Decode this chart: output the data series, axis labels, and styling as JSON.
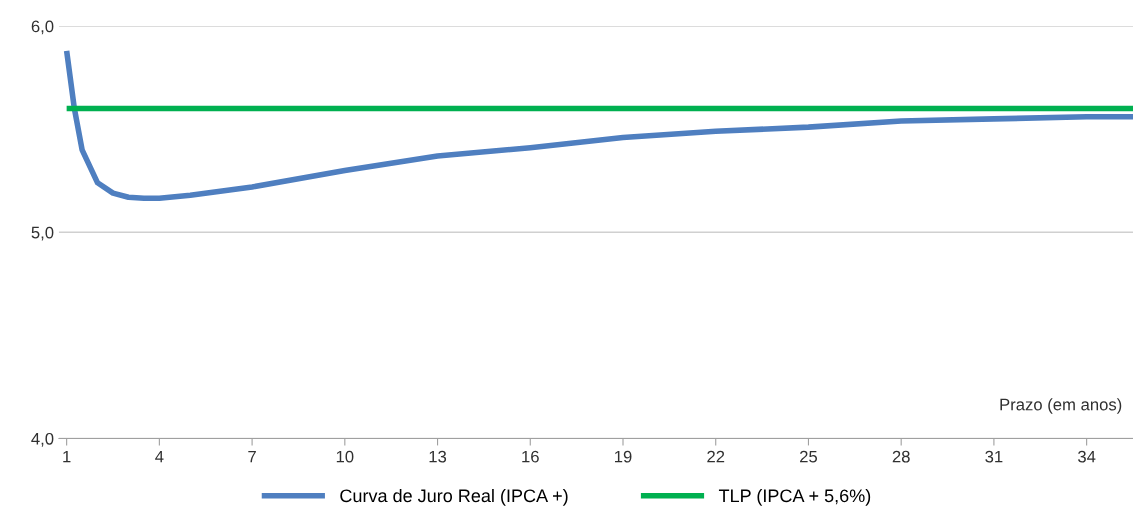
{
  "chart_data": {
    "type": "line",
    "xlabel": "Prazo (em anos)",
    "xlim": [
      0.75,
      35.5
    ],
    "xticks": [
      1,
      4,
      7,
      10,
      13,
      16,
      19,
      22,
      25,
      28,
      31,
      34
    ],
    "ylim": [
      4.0,
      6.0
    ],
    "yticks": [
      {
        "value": 4.0,
        "label": "4,0"
      },
      {
        "value": 5.0,
        "label": "5,0"
      },
      {
        "value": 6.0,
        "label": "6,0"
      }
    ],
    "grid": "y",
    "legend": "bottom",
    "marker": "none",
    "line_style": "solid",
    "series": [
      {
        "name": "Curva de Juro Real (IPCA +)",
        "color": "#4f7fc0",
        "x": [
          1,
          1.25,
          1.5,
          2,
          2.5,
          3,
          3.5,
          4,
          5,
          7,
          10,
          13,
          16,
          19,
          22,
          25,
          28,
          31,
          34,
          35.5
        ],
        "values": [
          5.88,
          5.6,
          5.4,
          5.24,
          5.19,
          5.17,
          5.165,
          5.165,
          5.18,
          5.22,
          5.3,
          5.37,
          5.41,
          5.46,
          5.49,
          5.51,
          5.54,
          5.55,
          5.56,
          5.56
        ]
      },
      {
        "name": "TLP (IPCA + 5,6%)",
        "color": "#00b050",
        "x": [
          1,
          35.5
        ],
        "values": [
          5.6,
          5.6
        ]
      }
    ]
  }
}
